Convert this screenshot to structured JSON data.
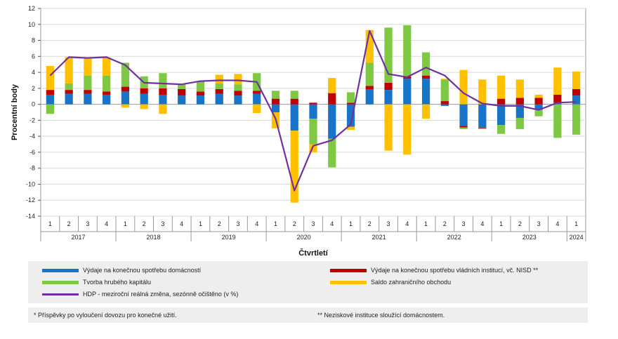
{
  "chart_data": {
    "type": "bar",
    "stacked": true,
    "ylabel": "Procentní body",
    "xlabel": "Čtvrtletí",
    "ylim": [
      -14,
      12
    ],
    "yticks": [
      12,
      10,
      8,
      6,
      4,
      2,
      0,
      -2,
      -4,
      -6,
      -8,
      -10,
      -12,
      -14
    ],
    "grid": true,
    "quarters": [
      "1",
      "2",
      "3",
      "4",
      "1",
      "2",
      "3",
      "4",
      "1",
      "2",
      "3",
      "4",
      "1",
      "2",
      "3",
      "4",
      "1",
      "2",
      "3",
      "4",
      "1",
      "2",
      "3",
      "4",
      "1",
      "2",
      "3",
      "4",
      "1"
    ],
    "years": [
      {
        "label": "2017",
        "count": 4
      },
      {
        "label": "2018",
        "count": 4
      },
      {
        "label": "2019",
        "count": 4
      },
      {
        "label": "2020",
        "count": 4
      },
      {
        "label": "2021",
        "count": 4
      },
      {
        "label": "2022",
        "count": 4
      },
      {
        "label": "2023",
        "count": 4
      },
      {
        "label": "2024",
        "count": 1
      }
    ],
    "series": [
      {
        "name": "Výdaje na konečnou spotřebu domácností",
        "color": "#1874c8",
        "values": [
          1.2,
          1.3,
          1.3,
          1.2,
          1.6,
          1.3,
          1.2,
          1.1,
          1.1,
          1.3,
          1.1,
          1.3,
          -1.0,
          -3.3,
          -1.8,
          -4.3,
          -2.8,
          1.9,
          1.8,
          3.2,
          3.2,
          -0.2,
          -2.7,
          -2.9,
          -2.6,
          -1.7,
          -0.7,
          0.2,
          1.1
        ]
      },
      {
        "name": "Výdaje na konečnou spotřebu vládních institucí, vč. NISD **",
        "color": "#c00000",
        "values": [
          0.6,
          0.5,
          0.5,
          0.4,
          0.6,
          0.7,
          0.8,
          0.8,
          0.5,
          0.6,
          0.6,
          0.4,
          0.7,
          0.7,
          0.2,
          1.4,
          0.2,
          0.4,
          0.9,
          0.3,
          0.4,
          0.4,
          -0.2,
          -0.1,
          0.7,
          0.8,
          0.8,
          1.0,
          0.8
        ]
      },
      {
        "name": "Tvorba hrubého kapitálu",
        "color": "#7fc843",
        "values": [
          -1.2,
          0.8,
          1.8,
          2.0,
          3.0,
          1.5,
          1.9,
          0.6,
          1.3,
          0.7,
          0.8,
          2.2,
          1.0,
          1.0,
          -3.2,
          -3.6,
          1.3,
          2.9,
          6.9,
          6.4,
          2.9,
          2.7,
          -0.2,
          -0.1,
          -1.1,
          -1.4,
          -0.8,
          -4.2,
          -3.8
        ]
      },
      {
        "name": "Saldo zahraničního obchodu",
        "color": "#ffc000",
        "values": [
          3.0,
          3.3,
          2.2,
          2.3,
          -0.4,
          -0.6,
          -1.2,
          0.1,
          0.0,
          1.1,
          1.3,
          -1.1,
          -2.0,
          -9.0,
          -1.0,
          1.9,
          -0.4,
          4.1,
          -5.8,
          -6.3,
          -1.8,
          0.1,
          4.3,
          3.1,
          2.9,
          2.3,
          0.4,
          3.4,
          2.2
        ]
      },
      {
        "name": "HDP - meziroční reálná změna, sezónně očištěno (v %)",
        "color": "#7030a0",
        "kind": "line",
        "values": [
          3.6,
          5.9,
          5.8,
          5.9,
          4.9,
          2.7,
          2.6,
          2.5,
          2.9,
          3.0,
          3.0,
          2.8,
          -1.8,
          -10.8,
          -5.2,
          -4.5,
          -2.5,
          9.2,
          3.8,
          3.4,
          4.6,
          3.6,
          1.4,
          0.1,
          -0.2,
          -0.2,
          -0.7,
          0.2,
          0.3
        ]
      }
    ],
    "legend_position": "bottom"
  },
  "footnotes": {
    "left": "* Příspěvky po vyloučení dovozu pro konečné užití.",
    "right": "** Neziskové instituce sloužící domácnostem."
  }
}
